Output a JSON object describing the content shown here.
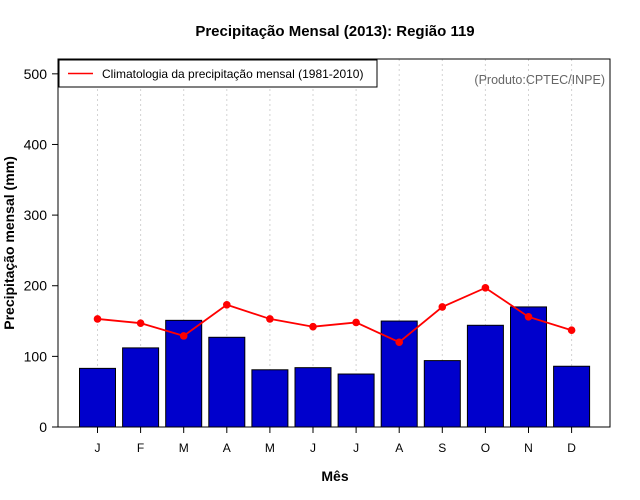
{
  "chart_data": {
    "type": "bar",
    "title": "Precipitação Mensal (2013): Região 119",
    "xlabel": "Mês",
    "ylabel": "Precipitação mensal (mm)",
    "ylim": [
      0,
      500
    ],
    "yticks": [
      0,
      100,
      200,
      300,
      400,
      500
    ],
    "grid": "vertical dotted",
    "categories": [
      "J",
      "F",
      "M",
      "A",
      "M",
      "J",
      "J",
      "A",
      "S",
      "O",
      "N",
      "D"
    ],
    "series": [
      {
        "name": "Precipitação mensal 2013",
        "type": "bar",
        "color": "#0000cc",
        "values": [
          83,
          112,
          151,
          127,
          81,
          84,
          75,
          150,
          94,
          144,
          170,
          86
        ]
      },
      {
        "name": "Climatologia da precipitação mensal (1981-2010)",
        "type": "line",
        "color": "#ff0000",
        "values": [
          153,
          147,
          129,
          173,
          153,
          142,
          148,
          120,
          170,
          197,
          156,
          137
        ]
      }
    ],
    "legend": {
      "position": "top-left",
      "label": "Climatologia da precipitação mensal (1981-2010)"
    },
    "annotation": "(Produto:CPTEC/INPE)"
  }
}
